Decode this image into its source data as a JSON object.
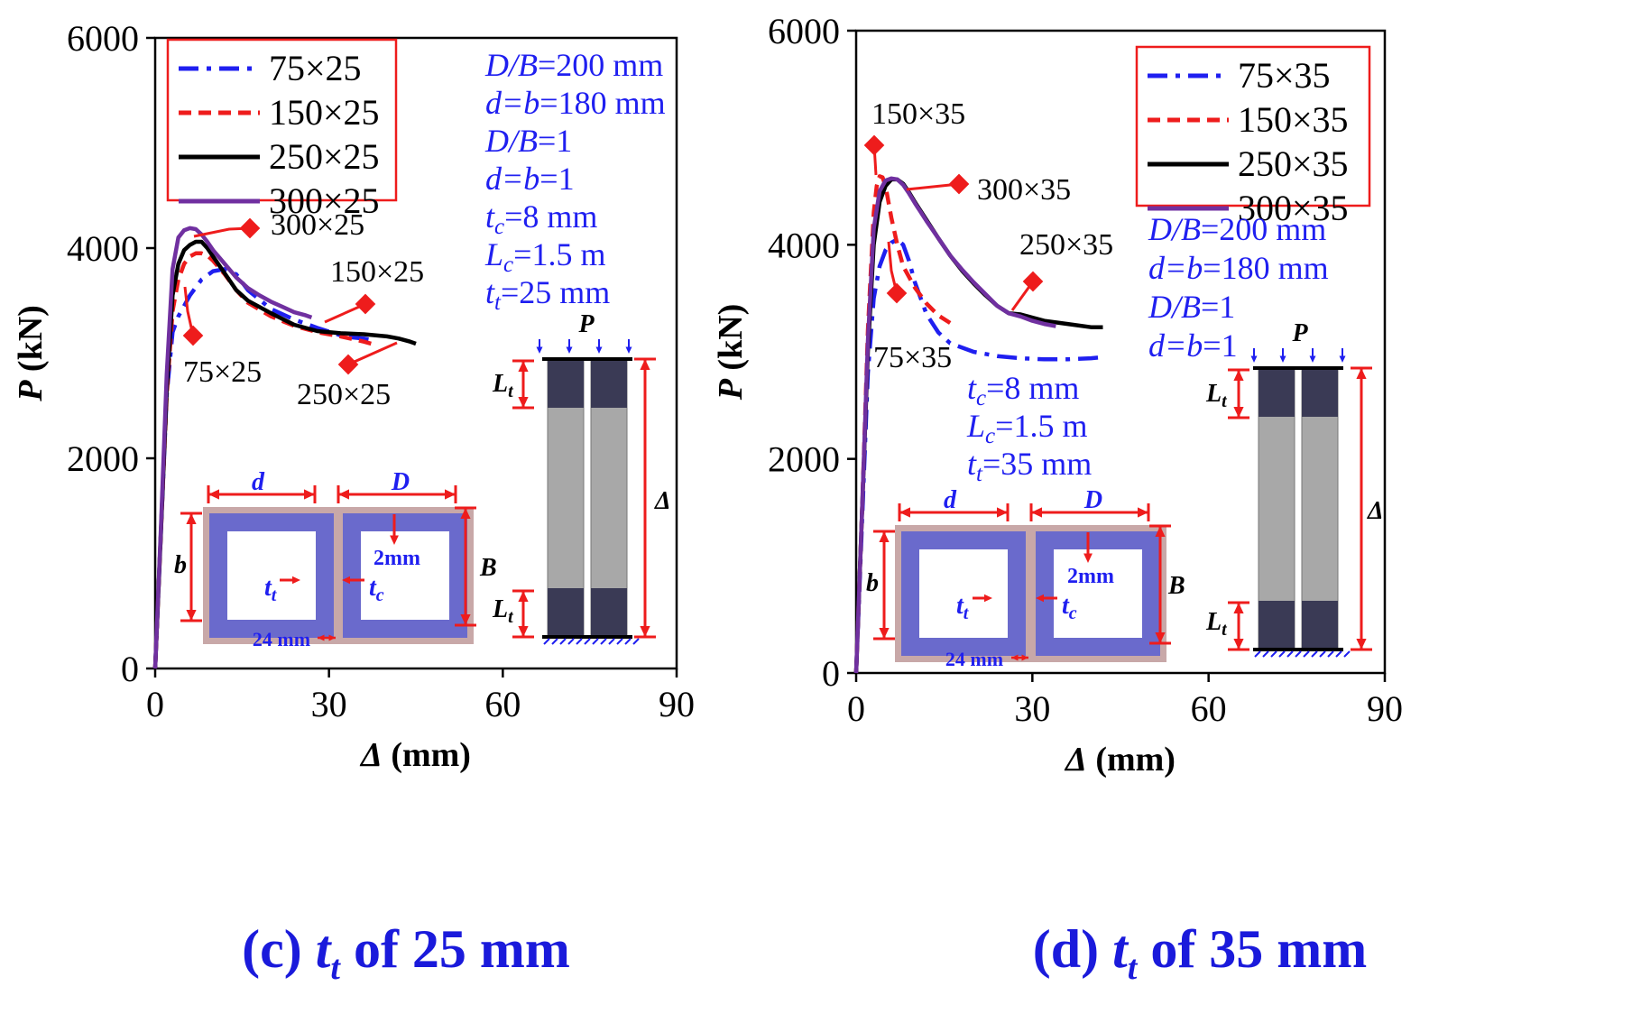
{
  "chart_data": [
    {
      "type": "line",
      "panel": "c",
      "caption": {
        "prefix": "(c)",
        "var": "t",
        "sub": "t",
        "suffix": "of 25 mm"
      },
      "xlabel": {
        "sym": "Δ",
        "unit": "(mm)"
      },
      "ylabel": {
        "sym": "P",
        "unit": "(kN)"
      },
      "xlim": [
        0,
        90
      ],
      "ylim": [
        0,
        6000
      ],
      "xticks": [
        0,
        30,
        60,
        90
      ],
      "yticks": [
        0,
        2000,
        4000,
        6000
      ],
      "legend": {
        "position": "top-left",
        "entries": [
          "75×25",
          "150×25",
          "250×25",
          "300×25"
        ]
      },
      "series": [
        {
          "name": "75×25",
          "color": "#1f1ff0",
          "dash": "dashdot",
          "x": [
            0,
            1,
            2,
            3,
            4,
            5,
            6,
            8,
            10,
            12,
            14,
            16,
            20,
            24,
            28,
            32,
            34,
            36,
            37
          ],
          "y": [
            0,
            1300,
            2600,
            3200,
            3350,
            3450,
            3550,
            3700,
            3780,
            3800,
            3750,
            3600,
            3420,
            3320,
            3240,
            3170,
            3150,
            3140,
            3130
          ]
        },
        {
          "name": "150×25",
          "color": "#ee1c1c",
          "dash": "dashed",
          "x": [
            0,
            1,
            2,
            3,
            4,
            5,
            6,
            7,
            8,
            9,
            10,
            12,
            14,
            16,
            20,
            24,
            28,
            32,
            36,
            38
          ],
          "y": [
            0,
            1300,
            2600,
            3400,
            3700,
            3850,
            3920,
            3950,
            3950,
            3930,
            3880,
            3750,
            3600,
            3480,
            3350,
            3260,
            3200,
            3160,
            3110,
            3080
          ]
        },
        {
          "name": "250×25",
          "color": "#000000",
          "dash": "solid",
          "x": [
            0,
            1,
            2,
            3,
            4,
            5,
            6,
            7,
            8,
            9,
            10,
            12,
            14,
            16,
            20,
            24,
            28,
            32,
            36,
            40,
            42,
            44,
            45
          ],
          "y": [
            0,
            1300,
            2650,
            3550,
            3850,
            3980,
            4030,
            4060,
            4060,
            4000,
            3920,
            3760,
            3600,
            3500,
            3380,
            3270,
            3210,
            3190,
            3180,
            3160,
            3140,
            3110,
            3090
          ]
        },
        {
          "name": "300×25",
          "color": "#7030a0",
          "dash": "solid",
          "x": [
            0,
            1,
            2,
            3,
            4,
            5,
            6,
            7,
            8,
            9,
            10,
            12,
            14,
            16,
            18,
            20,
            22,
            24,
            26,
            27
          ],
          "y": [
            0,
            1350,
            2800,
            3800,
            4100,
            4170,
            4190,
            4180,
            4130,
            4060,
            3980,
            3850,
            3720,
            3620,
            3550,
            3490,
            3440,
            3390,
            3360,
            3340
          ]
        }
      ],
      "callouts": [
        "300×25",
        "150×25",
        "75×25",
        "250×25"
      ],
      "params": [
        {
          "a": "D/B",
          "b": "=200 mm"
        },
        {
          "a": "d=b",
          "b": "=180 mm"
        },
        {
          "a": "D/B",
          "b": "=1"
        },
        {
          "a": "d=b",
          "b": "=1"
        },
        {
          "a": "t",
          "s": "c",
          "b": "=8 mm"
        },
        {
          "a": "L",
          "s": "c",
          "b": "=1.5 m"
        },
        {
          "a": "t",
          "s": "t",
          "b": "=25 mm"
        }
      ],
      "section_labels": {
        "d": "d",
        "D": "D",
        "b": "b",
        "B": "B",
        "gap": "2mm",
        "tt": "t",
        "tt_sub": "t",
        "tc": "t",
        "tc_sub": "c",
        "width": "24 mm"
      },
      "column_labels": {
        "P": "P",
        "Lt": "L",
        "Lt_sub": "t",
        "delta": "Δ"
      }
    },
    {
      "type": "line",
      "panel": "d",
      "caption": {
        "prefix": "(d)",
        "var": "t",
        "sub": "t",
        "suffix": "of 35 mm"
      },
      "xlabel": {
        "sym": "Δ",
        "unit": "(mm)"
      },
      "ylabel": {
        "sym": "P",
        "unit": "(kN)"
      },
      "xlim": [
        0,
        90
      ],
      "ylim": [
        0,
        6000
      ],
      "xticks": [
        0,
        30,
        60,
        90
      ],
      "yticks": [
        0,
        2000,
        4000,
        6000
      ],
      "legend": {
        "position": "top-right",
        "entries": [
          "75×35",
          "150×35",
          "250×35",
          "300×35"
        ]
      },
      "series": [
        {
          "name": "75×35",
          "color": "#1f1ff0",
          "dash": "dashdot",
          "x": [
            0,
            1,
            2,
            3,
            4,
            5,
            6,
            7,
            8,
            9,
            10,
            12,
            14,
            16,
            20,
            24,
            28,
            32,
            36,
            40,
            42
          ],
          "y": [
            0,
            1400,
            2800,
            3500,
            3800,
            3950,
            4020,
            4050,
            4000,
            3850,
            3650,
            3350,
            3180,
            3080,
            3000,
            2960,
            2940,
            2930,
            2930,
            2940,
            2950
          ]
        },
        {
          "name": "150×35",
          "color": "#ee1c1c",
          "dash": "dashed",
          "x": [
            0,
            1,
            2,
            3,
            3.5,
            4,
            4.5,
            5,
            5.5,
            6,
            7,
            8,
            10,
            12,
            14,
            16
          ],
          "y": [
            0,
            1500,
            3200,
            4300,
            4550,
            4640,
            4630,
            4550,
            4400,
            4250,
            4000,
            3800,
            3600,
            3450,
            3340,
            3270
          ]
        },
        {
          "name": "250×35",
          "color": "#000000",
          "dash": "solid",
          "x": [
            0,
            1,
            2,
            3,
            4,
            5,
            6,
            7,
            8,
            9,
            10,
            12,
            14,
            16,
            18,
            20,
            22,
            24,
            26,
            28,
            30,
            32,
            36,
            40,
            42
          ],
          "y": [
            0,
            1500,
            3000,
            4000,
            4400,
            4550,
            4610,
            4610,
            4570,
            4490,
            4400,
            4230,
            4060,
            3900,
            3760,
            3640,
            3530,
            3430,
            3360,
            3350,
            3320,
            3290,
            3260,
            3230,
            3230
          ]
        },
        {
          "name": "300×35",
          "color": "#7030a0",
          "dash": "solid",
          "x": [
            0,
            1,
            2,
            3,
            4,
            5,
            6,
            7,
            8,
            9,
            10,
            12,
            14,
            16,
            18,
            20,
            22,
            24,
            26,
            28,
            30,
            32,
            34
          ],
          "y": [
            0,
            1500,
            3100,
            4150,
            4500,
            4600,
            4620,
            4610,
            4560,
            4480,
            4390,
            4220,
            4060,
            3900,
            3770,
            3650,
            3540,
            3430,
            3360,
            3330,
            3290,
            3260,
            3240
          ]
        }
      ],
      "callouts": [
        "150×35",
        "300×35",
        "250×35",
        "75×35"
      ],
      "params": [
        {
          "a": "t",
          "s": "c",
          "b": "=8 mm"
        },
        {
          "a": "L",
          "s": "c",
          "b": "=1.5 m"
        },
        {
          "a": "t",
          "s": "t",
          "b": "=35 mm"
        }
      ],
      "params2": [
        {
          "a": "D/B",
          "b": "=200 mm"
        },
        {
          "a": "d=b",
          "b": "=180 mm"
        },
        {
          "a": "D/B",
          "b": "=1"
        },
        {
          "a": "d=b",
          "b": "=1"
        }
      ],
      "section_labels": {
        "d": "d",
        "D": "D",
        "b": "b",
        "B": "B",
        "gap": "2mm",
        "tt": "t",
        "tt_sub": "t",
        "tc": "t",
        "tc_sub": "c",
        "width": "24 mm"
      },
      "column_labels": {
        "P": "P",
        "Lt": "L",
        "Lt_sub": "t",
        "delta": "Δ"
      }
    }
  ]
}
